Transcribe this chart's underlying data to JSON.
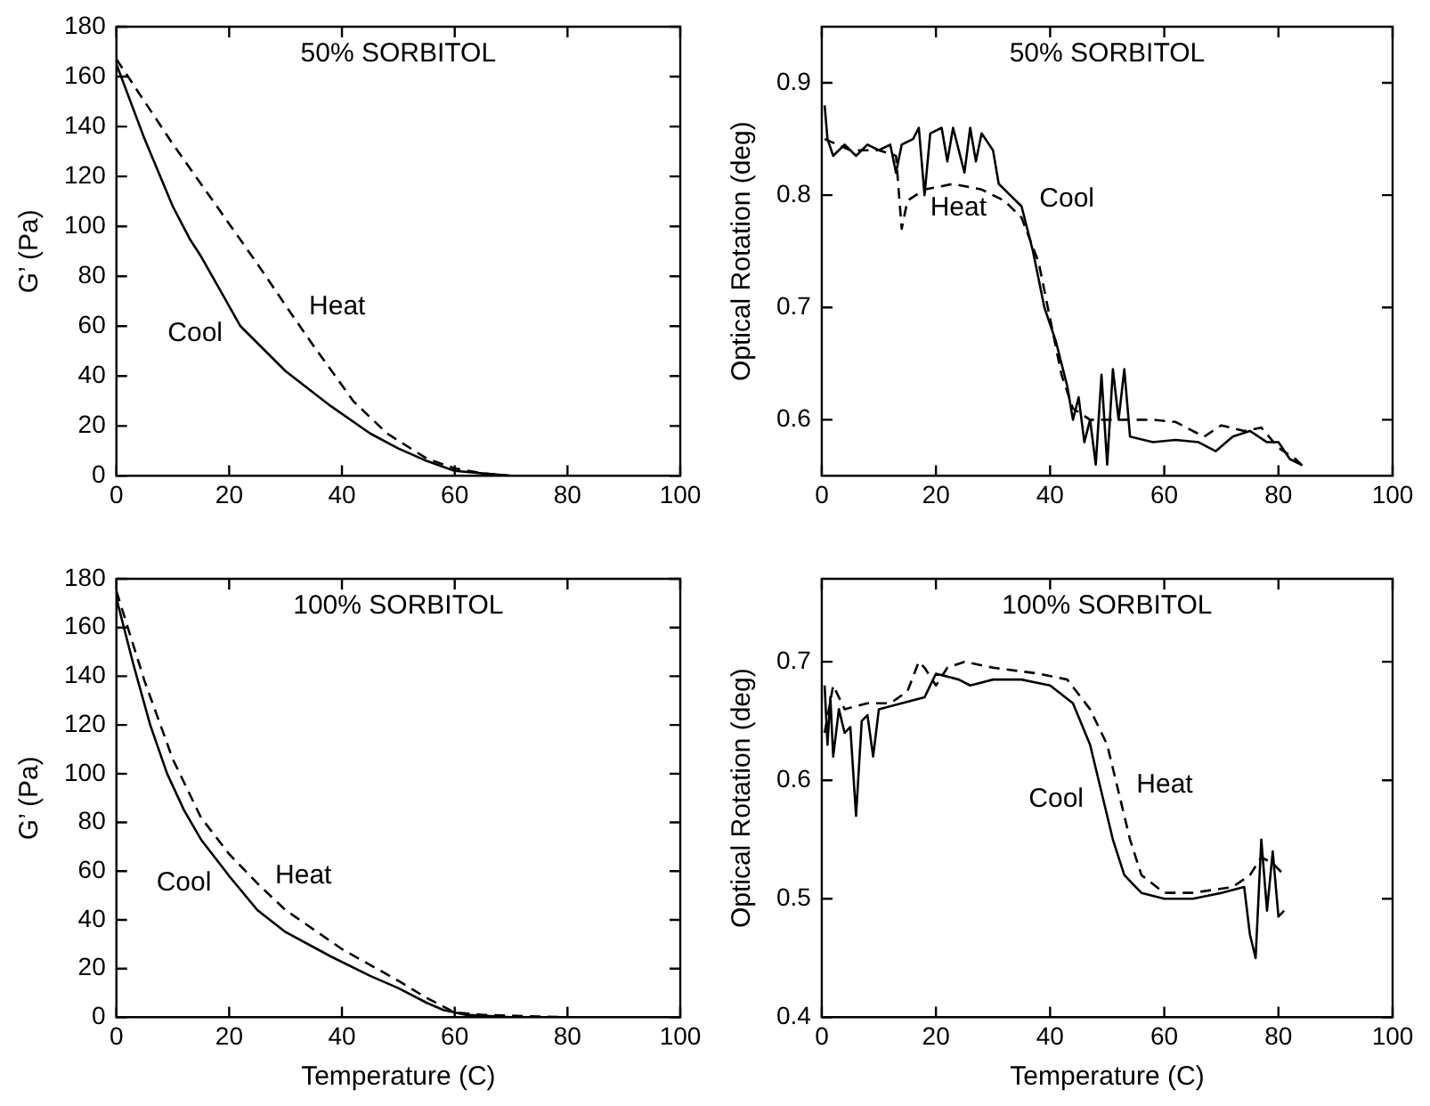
{
  "chart_data": [
    {
      "type": "line",
      "title": "50% SORBITOL",
      "ylabel": "G’ (Pa)",
      "xlim": [
        0,
        100
      ],
      "xticks": [
        0,
        20,
        40,
        60,
        80,
        100
      ],
      "ylim": [
        0,
        180
      ],
      "yticks": [
        0,
        20,
        40,
        60,
        80,
        100,
        120,
        140,
        160,
        180
      ],
      "grid": false,
      "legend": false,
      "marker": "none",
      "annotations": [
        {
          "text": "Cool",
          "x": 22,
          "y": 60
        },
        {
          "text": "Heat",
          "x": 31,
          "y": 65
        }
      ],
      "series": [
        {
          "color": "#000000",
          "line_style": "solid",
          "x": [
            0,
            5,
            10,
            13,
            15,
            20,
            22,
            30,
            38,
            45,
            50,
            55,
            60,
            65,
            70
          ],
          "values": [
            165,
            135,
            108,
            95,
            88,
            68,
            60,
            42,
            28,
            17,
            11,
            6,
            2,
            1,
            0
          ]
        },
        {
          "color": "#000000",
          "line_style": "dashed",
          "x": [
            0,
            10,
            20,
            25,
            31,
            35,
            42,
            48,
            55,
            60,
            65,
            70
          ],
          "values": [
            167,
            133,
            101,
            85,
            65,
            52,
            30,
            17,
            7,
            3,
            1,
            0
          ]
        }
      ]
    },
    {
      "type": "line",
      "title": "50% SORBITOL",
      "ylabel": "Optical Rotation (deg)",
      "xlim": [
        0,
        100
      ],
      "xticks": [
        0,
        20,
        40,
        60,
        80,
        100
      ],
      "ylim": [
        0.55,
        0.95
      ],
      "yticks": [
        0.6,
        0.7,
        0.8,
        0.9
      ],
      "grid": false,
      "legend": false,
      "marker": "none",
      "annotations": [
        {
          "text": "Cool",
          "x": 35,
          "y": 0.79
        },
        {
          "text": "Heat",
          "x": 32,
          "y": 0.795
        }
      ],
      "series": [
        {
          "color": "#000000",
          "line_style": "solid",
          "x": [
            0.5,
            1,
            2,
            4,
            6,
            8,
            10,
            12,
            13,
            14,
            16,
            17,
            18,
            19,
            21,
            22,
            23,
            25,
            26,
            27,
            28,
            30,
            31,
            33,
            35,
            37,
            39,
            41,
            43,
            44,
            45,
            46,
            47,
            48,
            49,
            50,
            51,
            52,
            53,
            54,
            58,
            62,
            66,
            69,
            72,
            75,
            78,
            80,
            82,
            84
          ],
          "values": [
            0.88,
            0.85,
            0.835,
            0.845,
            0.835,
            0.845,
            0.84,
            0.845,
            0.82,
            0.845,
            0.85,
            0.86,
            0.8,
            0.855,
            0.86,
            0.83,
            0.86,
            0.82,
            0.86,
            0.83,
            0.855,
            0.84,
            0.81,
            0.8,
            0.79,
            0.75,
            0.7,
            0.67,
            0.63,
            0.6,
            0.62,
            0.58,
            0.6,
            0.56,
            0.64,
            0.56,
            0.645,
            0.6,
            0.645,
            0.585,
            0.58,
            0.582,
            0.58,
            0.572,
            0.585,
            0.59,
            0.58,
            0.58,
            0.565,
            0.56
          ]
        },
        {
          "color": "#000000",
          "line_style": "dashed",
          "x": [
            0.5,
            5,
            10,
            13,
            14,
            15,
            18,
            23,
            28,
            32,
            35,
            38,
            40,
            42,
            44,
            47,
            52,
            58,
            62,
            65,
            67,
            70,
            74,
            77,
            80,
            83,
            85
          ],
          "values": [
            0.85,
            0.84,
            0.84,
            0.835,
            0.77,
            0.795,
            0.805,
            0.81,
            0.805,
            0.795,
            0.78,
            0.74,
            0.69,
            0.64,
            0.61,
            0.6,
            0.6,
            0.6,
            0.598,
            0.59,
            0.585,
            0.595,
            0.59,
            0.593,
            0.575,
            0.565,
            0.555
          ]
        }
      ]
    },
    {
      "type": "line",
      "title": "100% SORBITOL",
      "xlabel": "Temperature (C)",
      "ylabel": "G’ (Pa)",
      "xlim": [
        0,
        100
      ],
      "xticks": [
        0,
        20,
        40,
        60,
        80,
        100
      ],
      "ylim": [
        0,
        180
      ],
      "yticks": [
        0,
        20,
        40,
        60,
        80,
        100,
        120,
        140,
        160,
        180
      ],
      "grid": false,
      "legend": false,
      "marker": "none",
      "annotations": [
        {
          "text": "Cool",
          "x": 20,
          "y": 58
        },
        {
          "text": "Heat",
          "x": 25,
          "y": 55
        }
      ],
      "series": [
        {
          "color": "#000000",
          "line_style": "solid",
          "x": [
            0,
            3,
            6,
            9,
            12,
            15,
            20,
            25,
            30,
            38,
            45,
            50,
            55,
            58,
            62,
            70,
            80
          ],
          "values": [
            172,
            145,
            120,
            100,
            85,
            73,
            58,
            44,
            35,
            25,
            17,
            12,
            6,
            3,
            1,
            0,
            0
          ]
        },
        {
          "color": "#000000",
          "line_style": "dashed",
          "x": [
            0,
            5,
            10,
            15,
            20,
            25,
            30,
            40,
            50,
            55,
            60,
            65,
            80
          ],
          "values": [
            175,
            138,
            106,
            82,
            67,
            55,
            44,
            28,
            15,
            8,
            2,
            1,
            0
          ]
        }
      ]
    },
    {
      "type": "line",
      "title": "100% SORBITOL",
      "xlabel": "Temperature (C)",
      "ylabel": "Optical Rotation (deg)",
      "xlim": [
        0,
        100
      ],
      "xticks": [
        0,
        20,
        40,
        60,
        80,
        100
      ],
      "ylim": [
        0.4,
        0.77
      ],
      "yticks": [
        0.4,
        0.5,
        0.6,
        0.7
      ],
      "grid": false,
      "legend": false,
      "marker": "none",
      "annotations": [
        {
          "text": "Cool",
          "x": 49,
          "y": 0.59
        },
        {
          "text": "Heat",
          "x": 52,
          "y": 0.59
        }
      ],
      "series": [
        {
          "color": "#000000",
          "line_style": "solid",
          "x": [
            0.5,
            1,
            1.5,
            2,
            3,
            4,
            5,
            6,
            7,
            8,
            9,
            10,
            14,
            18,
            20,
            24,
            26,
            30,
            35,
            40,
            44,
            47,
            49,
            51,
            53,
            56,
            60,
            65,
            70,
            74,
            75,
            76,
            77,
            78,
            79,
            80,
            81
          ],
          "values": [
            0.68,
            0.63,
            0.67,
            0.62,
            0.66,
            0.64,
            0.645,
            0.57,
            0.65,
            0.655,
            0.62,
            0.66,
            0.665,
            0.67,
            0.69,
            0.685,
            0.68,
            0.685,
            0.685,
            0.68,
            0.665,
            0.63,
            0.59,
            0.55,
            0.52,
            0.505,
            0.5,
            0.5,
            0.505,
            0.51,
            0.47,
            0.45,
            0.55,
            0.49,
            0.54,
            0.485,
            0.49
          ]
        },
        {
          "color": "#000000",
          "line_style": "dashed",
          "x": [
            0.5,
            2,
            4,
            8,
            12,
            15,
            17,
            18,
            20,
            22,
            25,
            30,
            38,
            43,
            47,
            50,
            52,
            54,
            56,
            60,
            65,
            72,
            75,
            77,
            79,
            81
          ],
          "values": [
            0.64,
            0.68,
            0.66,
            0.665,
            0.665,
            0.675,
            0.7,
            0.695,
            0.68,
            0.695,
            0.7,
            0.695,
            0.69,
            0.685,
            0.66,
            0.63,
            0.59,
            0.55,
            0.52,
            0.505,
            0.505,
            0.51,
            0.52,
            0.535,
            0.53,
            0.52
          ]
        }
      ]
    }
  ]
}
